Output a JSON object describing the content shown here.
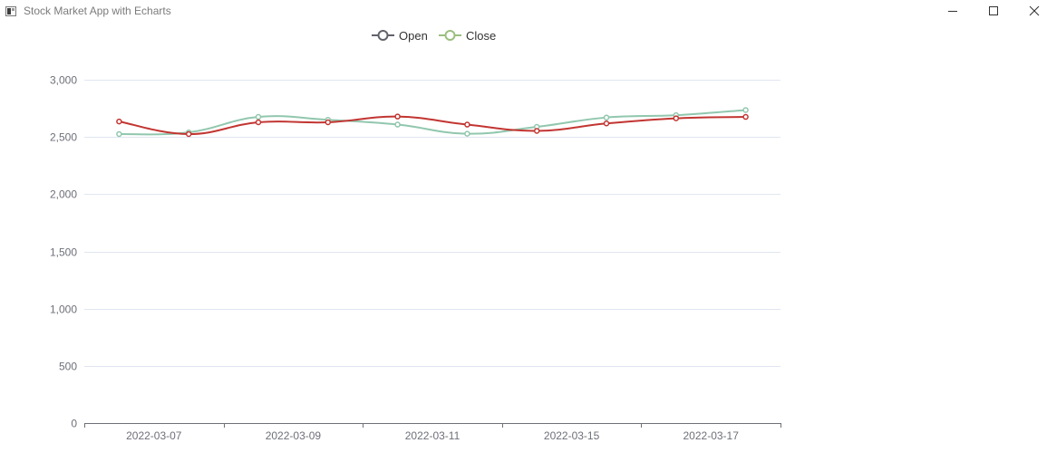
{
  "window": {
    "title": "Stock Market App with Echarts",
    "controls": [
      "minimize",
      "maximize",
      "close"
    ]
  },
  "chart_data": {
    "type": "line",
    "title": "",
    "xlabel": "",
    "ylabel": "",
    "smooth": true,
    "legend_position": "top-center",
    "grid": true,
    "x_tick_labels": [
      "2022-03-07",
      "2022-03-09",
      "2022-03-11",
      "2022-03-15",
      "2022-03-17"
    ],
    "y_ticks": [
      0,
      500,
      1000,
      1500,
      2000,
      2500,
      3000
    ],
    "y_tick_labels": [
      "0",
      "500",
      "1,000",
      "1,500",
      "2,000",
      "2,500",
      "3,000"
    ],
    "ylim": [
      0,
      3000
    ],
    "series": [
      {
        "name": "Open",
        "color": "#c23531",
        "legend_color": "#61636a",
        "values": [
          2635,
          2525,
          2628,
          2628,
          2678,
          2608,
          2553,
          2618,
          2663,
          2675
        ]
      },
      {
        "name": "Close",
        "color": "#91c7ae",
        "legend_color": "#9bbf7f",
        "values": [
          2525,
          2540,
          2675,
          2650,
          2608,
          2528,
          2588,
          2670,
          2690,
          2735
        ]
      }
    ]
  }
}
